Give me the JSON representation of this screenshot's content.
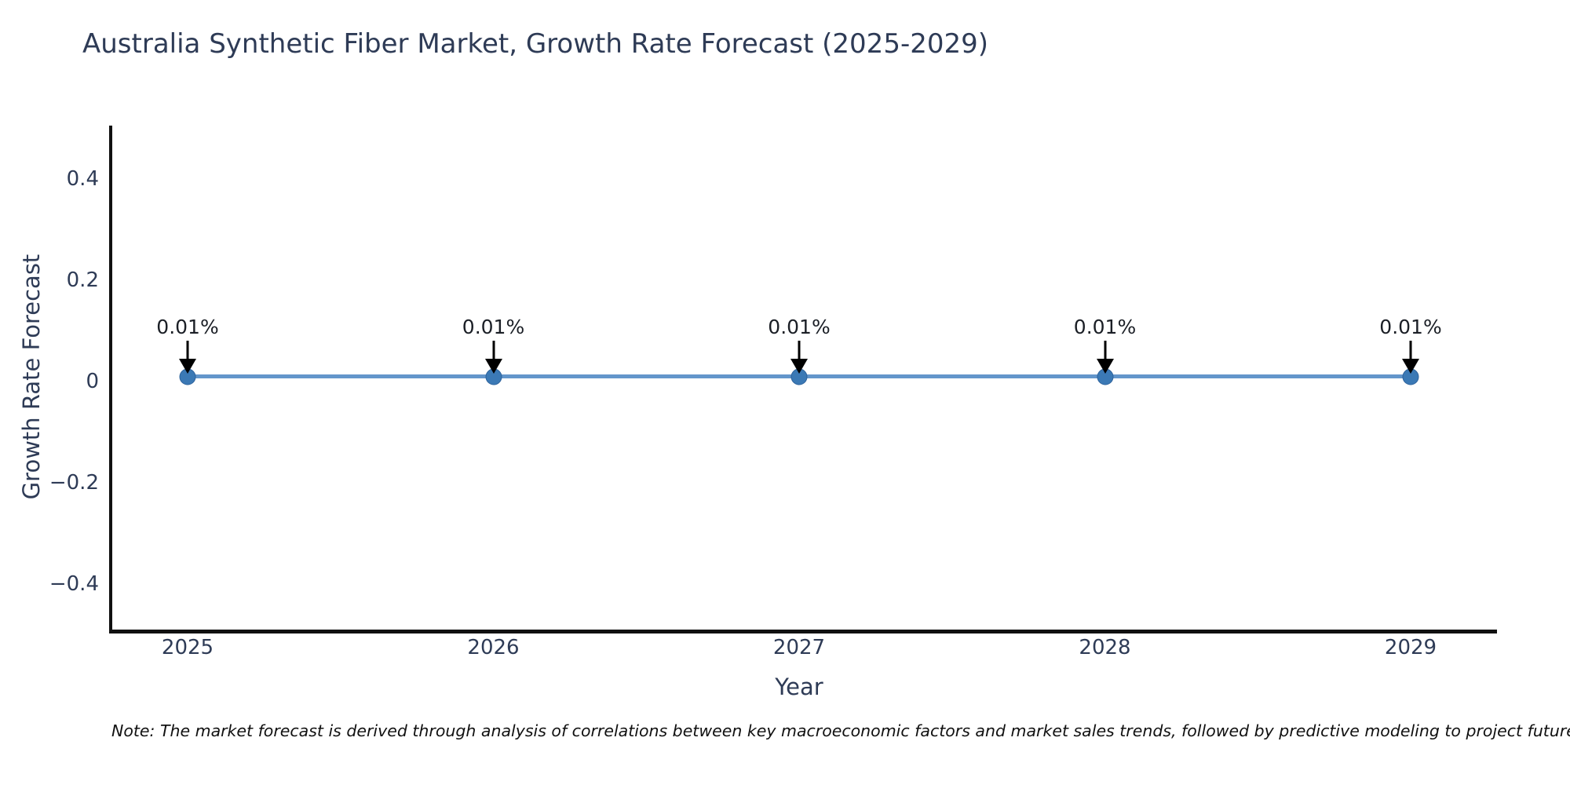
{
  "title": "Australia Synthetic Fiber Market, Growth Rate Forecast (2025-2029)",
  "note": "Note: The market forecast is derived through analysis of correlations between key macroeconomic factors and market sales trends, followed by predictive modeling to project future sales",
  "chart_data": {
    "type": "line",
    "title": "Australia Synthetic Fiber Market, Growth Rate Forecast (2025-2029)",
    "xlabel": "Year",
    "ylabel": "Growth Rate Forecast",
    "x": [
      2025,
      2026,
      2027,
      2028,
      2029
    ],
    "categories": [
      "2025",
      "2026",
      "2027",
      "2028",
      "2029"
    ],
    "series": [
      {
        "name": "Growth Rate Forecast",
        "values": [
          0.01,
          0.01,
          0.01,
          0.01,
          0.01
        ],
        "unit": "percent"
      }
    ],
    "point_labels": [
      "0.01%",
      "0.01%",
      "0.01%",
      "0.01%",
      "0.01%"
    ],
    "yticks": [
      0.4,
      0.2,
      0,
      -0.2,
      -0.4
    ],
    "ytick_labels": [
      "0.4",
      "0.2",
      "0",
      "−0.2",
      "−0.4"
    ],
    "ylim": [
      -0.49,
      0.505
    ],
    "grid": false,
    "legend_position": "none",
    "marker_style": "circle-with-down-arrow-annotation",
    "colors": {
      "line": "#6396cb",
      "marker": "#3b79b5",
      "marker_edge": "#2e639c",
      "axis_line": "#111111",
      "axis_text": "#2e3b56",
      "annotation_text": "#1b1f26",
      "arrow": "#000000",
      "background": "#ffffff"
    }
  }
}
